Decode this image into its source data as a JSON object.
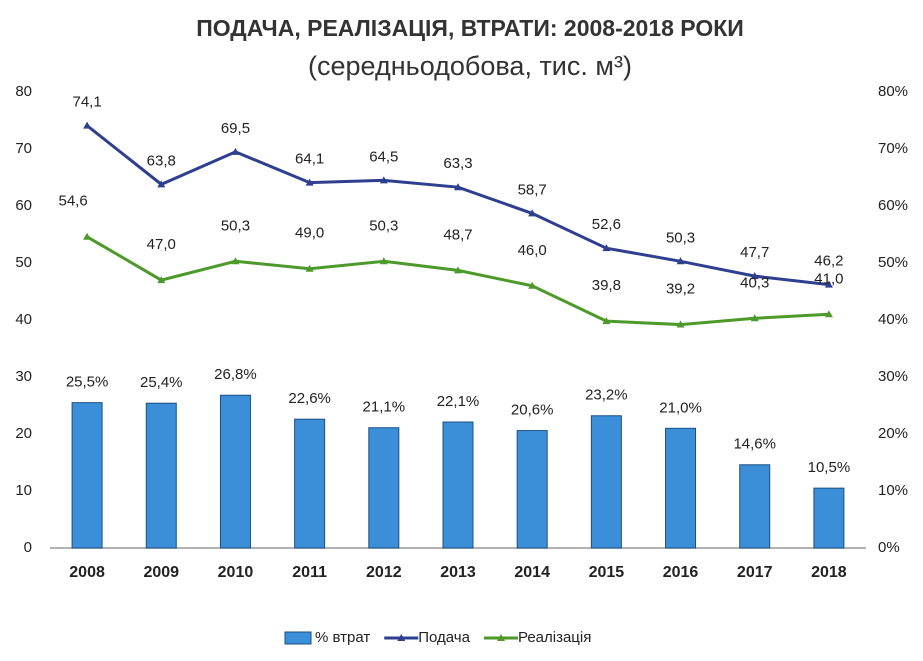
{
  "chart_data": {
    "type": "combo",
    "title": "ПОДАЧА, РЕАЛІЗАЦІЯ, ВТРАТИ:  2008-2018 РОКИ",
    "subtitle": "(середньодобова, тис. м³)",
    "categories": [
      "2008",
      "2009",
      "2010",
      "2011",
      "2012",
      "2013",
      "2014",
      "2015",
      "2016",
      "2017",
      "2018"
    ],
    "ylim": [
      0,
      80
    ],
    "yticks": [
      0,
      10,
      20,
      30,
      40,
      50,
      60,
      70,
      80
    ],
    "y2lim": [
      0,
      80
    ],
    "y2ticks": [
      {
        "value": 0,
        "label": "0%"
      },
      {
        "value": 10,
        "label": "10%"
      },
      {
        "value": 20,
        "label": "20%"
      },
      {
        "value": 30,
        "label": "30%"
      },
      {
        "value": 40,
        "label": "40%"
      },
      {
        "value": 50,
        "label": "50%"
      },
      {
        "value": 60,
        "label": "60%"
      },
      {
        "value": 70,
        "label": "70%"
      },
      {
        "value": 80,
        "label": "80%"
      }
    ],
    "grid": false,
    "legend": "bottom",
    "series": [
      {
        "name": "% втрат",
        "type": "bar",
        "axis": "y2",
        "color": "#3b8fd9",
        "values": [
          25.5,
          25.4,
          26.8,
          22.6,
          21.1,
          22.1,
          20.6,
          23.2,
          21.0,
          14.6,
          10.5
        ],
        "value_labels": [
          "25,5%",
          "25,4%",
          "26,8%",
          "22,6%",
          "21,1%",
          "22,1%",
          "20,6%",
          "23,2%",
          "21,0%",
          "14,6%",
          "10,5%"
        ]
      },
      {
        "name": "Подача",
        "type": "line",
        "color": "#2e3f8f",
        "values": [
          74.1,
          63.8,
          69.5,
          64.1,
          64.5,
          63.3,
          58.7,
          52.6,
          50.3,
          47.7,
          46.2
        ],
        "value_labels": [
          "74,1",
          "63,8",
          "69,5",
          "64,1",
          "64,5",
          "63,3",
          "58,7",
          "52,6",
          "50,3",
          "47,7",
          "46,2"
        ]
      },
      {
        "name": "Реалізація",
        "type": "line",
        "color": "#4c9a2a",
        "values": [
          54.6,
          47.0,
          50.3,
          49.0,
          50.3,
          48.7,
          46.0,
          39.8,
          39.2,
          40.3,
          41.0
        ],
        "value_labels": [
          "54,6",
          "47,0",
          "50,3",
          "49,0",
          "50,3",
          "48,7",
          "46,0",
          "39,8",
          "39,2",
          "40,3",
          "41,0"
        ]
      }
    ]
  }
}
